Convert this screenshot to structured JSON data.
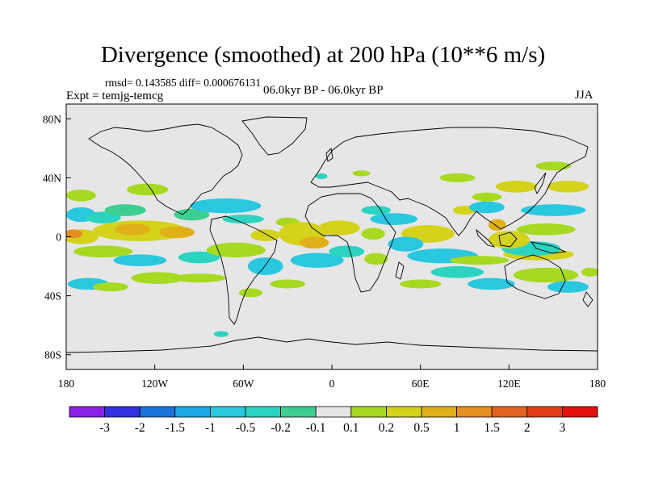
{
  "chart_data": {
    "type": "heatmap",
    "title": "Divergence (smoothed) at 200 hPa (10**6 m/s)",
    "stats_line": "rmsd= 0.143585  diff= 0.000676131",
    "experiment_label": "Expt = temjg-temcg",
    "period_label": "06.0kyr BP - 06.0kyr BP",
    "season_label": "JJA",
    "x_range": [
      -180,
      180
    ],
    "y_range": [
      -90,
      90
    ],
    "x_ticks": [
      {
        "value": -180,
        "label": "180"
      },
      {
        "value": -120,
        "label": "120W"
      },
      {
        "value": -60,
        "label": "60W"
      },
      {
        "value": 0,
        "label": "0"
      },
      {
        "value": 60,
        "label": "60E"
      },
      {
        "value": 120,
        "label": "120E"
      },
      {
        "value": 180,
        "label": "180"
      }
    ],
    "y_ticks": [
      {
        "value": 80,
        "label": "80N"
      },
      {
        "value": 40,
        "label": "40N"
      },
      {
        "value": 0,
        "label": "0"
      },
      {
        "value": -40,
        "label": "40S"
      },
      {
        "value": -80,
        "label": "80S"
      }
    ],
    "color_levels": [
      "-3",
      "-2",
      "-1.5",
      "-1",
      "-0.5",
      "-0.2",
      "-0.1",
      "0.1",
      "0.2",
      "0.5",
      "1",
      "1.5",
      "2",
      "3"
    ],
    "color_bins": [
      "#8b20e6",
      "#3030e0",
      "#1a73db",
      "#1ba8e8",
      "#2ac7e0",
      "#2cd3c1",
      "#3ccf91",
      "#e6e6e6",
      "#a6d91f",
      "#d4d21a",
      "#e0b01a",
      "#e58f20",
      "#e26420",
      "#e23c16",
      "#e20f0f"
    ],
    "field_blobs": [
      {
        "lon": -170,
        "lat": 15,
        "rlon": 10,
        "rlat": 5,
        "bin": 4
      },
      {
        "lon": -155,
        "lat": 13,
        "rlon": 12,
        "rlat": 4,
        "bin": 5
      },
      {
        "lon": -140,
        "lat": 18,
        "rlon": 14,
        "rlat": 4,
        "bin": 6
      },
      {
        "lon": -170,
        "lat": 28,
        "rlon": 10,
        "rlat": 4,
        "bin": 8
      },
      {
        "lon": -125,
        "lat": 32,
        "rlon": 14,
        "rlat": 4,
        "bin": 8
      },
      {
        "lon": -170,
        "lat": 0,
        "rlon": 12,
        "rlat": 5,
        "bin": 9
      },
      {
        "lon": -130,
        "lat": 4,
        "rlon": 32,
        "rlat": 7,
        "bin": 9
      },
      {
        "lon": -175,
        "lat": 2,
        "rlon": 6,
        "rlat": 3,
        "bin": 11
      },
      {
        "lon": -135,
        "lat": 5,
        "rlon": 12,
        "rlat": 4,
        "bin": 10
      },
      {
        "lon": -105,
        "lat": 3,
        "rlon": 12,
        "rlat": 4,
        "bin": 10
      },
      {
        "lon": -155,
        "lat": -10,
        "rlon": 20,
        "rlat": 4,
        "bin": 8
      },
      {
        "lon": -95,
        "lat": 15,
        "rlon": 12,
        "rlat": 4,
        "bin": 6
      },
      {
        "lon": -72,
        "lat": 21,
        "rlon": 24,
        "rlat": 5,
        "bin": 4
      },
      {
        "lon": -60,
        "lat": 12,
        "rlon": 14,
        "rlat": 3,
        "bin": 5
      },
      {
        "lon": -130,
        "lat": -16,
        "rlon": 18,
        "rlat": 4,
        "bin": 4
      },
      {
        "lon": -90,
        "lat": -14,
        "rlon": 14,
        "rlat": 4,
        "bin": 5
      },
      {
        "lon": -65,
        "lat": -9,
        "rlon": 20,
        "rlat": 5,
        "bin": 8
      },
      {
        "lon": -118,
        "lat": -28,
        "rlon": 18,
        "rlat": 4,
        "bin": 8
      },
      {
        "lon": -165,
        "lat": -32,
        "rlon": 14,
        "rlat": 4,
        "bin": 4
      },
      {
        "lon": -150,
        "lat": -34,
        "rlon": 12,
        "rlat": 3,
        "bin": 8
      },
      {
        "lon": -90,
        "lat": -28,
        "rlon": 18,
        "rlat": 3,
        "bin": 8
      },
      {
        "lon": -45,
        "lat": -20,
        "rlon": 12,
        "rlat": 6,
        "bin": 4
      },
      {
        "lon": -30,
        "lat": -32,
        "rlon": 12,
        "rlat": 3,
        "bin": 8
      },
      {
        "lon": -45,
        "lat": 1,
        "rlon": 10,
        "rlat": 4,
        "bin": 9
      },
      {
        "lon": -30,
        "lat": 10,
        "rlon": 8,
        "rlat": 3,
        "bin": 8
      },
      {
        "lon": -20,
        "lat": 2,
        "rlon": 16,
        "rlat": 8,
        "bin": 9
      },
      {
        "lon": -12,
        "lat": -4,
        "rlon": 10,
        "rlat": 4,
        "bin": 10
      },
      {
        "lon": -10,
        "lat": -16,
        "rlon": 18,
        "rlat": 5,
        "bin": 4
      },
      {
        "lon": 5,
        "lat": 6,
        "rlon": 14,
        "rlat": 5,
        "bin": 9
      },
      {
        "lon": 10,
        "lat": -10,
        "rlon": 12,
        "rlat": 4,
        "bin": 5
      },
      {
        "lon": 28,
        "lat": 2,
        "rlon": 8,
        "rlat": 4,
        "bin": 8
      },
      {
        "lon": 42,
        "lat": 12,
        "rlon": 16,
        "rlat": 4,
        "bin": 4
      },
      {
        "lon": 30,
        "lat": 18,
        "rlon": 10,
        "rlat": 3,
        "bin": 5
      },
      {
        "lon": 30,
        "lat": -15,
        "rlon": 8,
        "rlat": 4,
        "bin": 8
      },
      {
        "lon": 65,
        "lat": 2,
        "rlon": 18,
        "rlat": 6,
        "bin": 9
      },
      {
        "lon": 50,
        "lat": -5,
        "rlon": 12,
        "rlat": 5,
        "bin": 4
      },
      {
        "lon": 75,
        "lat": -13,
        "rlon": 24,
        "rlat": 5,
        "bin": 4
      },
      {
        "lon": 85,
        "lat": -24,
        "rlon": 18,
        "rlat": 4,
        "bin": 5
      },
      {
        "lon": 100,
        "lat": -16,
        "rlon": 20,
        "rlat": 3,
        "bin": 8
      },
      {
        "lon": 60,
        "lat": -32,
        "rlon": 14,
        "rlat": 3,
        "bin": 8
      },
      {
        "lon": 108,
        "lat": -32,
        "rlon": 16,
        "rlat": 4,
        "bin": 4
      },
      {
        "lon": 145,
        "lat": -26,
        "rlon": 22,
        "rlat": 5,
        "bin": 8
      },
      {
        "lon": 140,
        "lat": -12,
        "rlon": 24,
        "rlat": 4,
        "bin": 9
      },
      {
        "lon": 135,
        "lat": -8,
        "rlon": 20,
        "rlat": 5,
        "bin": 5
      },
      {
        "lon": 120,
        "lat": -2,
        "rlon": 14,
        "rlat": 6,
        "bin": 9
      },
      {
        "lon": 112,
        "lat": 8,
        "rlon": 6,
        "rlat": 4,
        "bin": 10
      },
      {
        "lon": 90,
        "lat": 18,
        "rlon": 8,
        "rlat": 3,
        "bin": 9
      },
      {
        "lon": 105,
        "lat": 20,
        "rlon": 12,
        "rlat": 4,
        "bin": 4
      },
      {
        "lon": 105,
        "lat": 27,
        "rlon": 10,
        "rlat": 3,
        "bin": 8
      },
      {
        "lon": 150,
        "lat": 18,
        "rlon": 22,
        "rlat": 4,
        "bin": 4
      },
      {
        "lon": 145,
        "lat": 5,
        "rlon": 20,
        "rlat": 4,
        "bin": 8
      },
      {
        "lon": 125,
        "lat": 34,
        "rlon": 14,
        "rlat": 4,
        "bin": 9
      },
      {
        "lon": 160,
        "lat": 34,
        "rlon": 14,
        "rlat": 4,
        "bin": 9
      },
      {
        "lon": 160,
        "lat": -34,
        "rlon": 14,
        "rlat": 4,
        "bin": 4
      },
      {
        "lon": 175,
        "lat": -24,
        "rlon": 6,
        "rlat": 3,
        "bin": 8
      },
      {
        "lon": 85,
        "lat": 40,
        "rlon": 12,
        "rlat": 3,
        "bin": 8
      },
      {
        "lon": 150,
        "lat": 48,
        "rlon": 12,
        "rlat": 3,
        "bin": 8
      },
      {
        "lon": -7,
        "lat": 41,
        "rlon": 4,
        "rlat": 2,
        "bin": 5
      },
      {
        "lon": 20,
        "lat": 43,
        "rlon": 6,
        "rlat": 2,
        "bin": 8
      },
      {
        "lon": -75,
        "lat": -66,
        "rlon": 5,
        "rlat": 2,
        "bin": 5
      },
      {
        "lon": -55,
        "lat": -38,
        "rlon": 8,
        "rlat": 3,
        "bin": 8
      }
    ]
  }
}
